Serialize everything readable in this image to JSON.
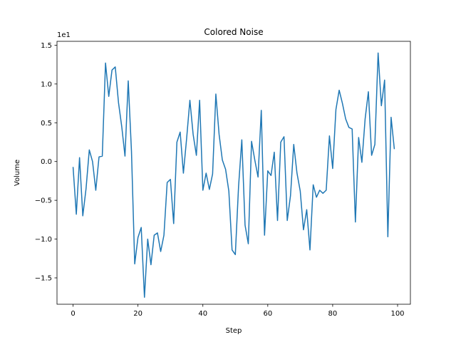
{
  "chart_data": {
    "type": "line",
    "title": "Colored Noise",
    "xlabel": "Step",
    "ylabel": "Volume",
    "y_offset_label": "1e1",
    "xlim": [
      -4.95,
      103.95
    ],
    "ylim": [
      -1.84,
      1.55
    ],
    "x_ticks": [
      0,
      20,
      40,
      60,
      80,
      100
    ],
    "x_tick_labels": [
      "0",
      "20",
      "40",
      "60",
      "80",
      "100"
    ],
    "y_ticks": [
      -1.5,
      -1.0,
      -0.5,
      0.0,
      0.5,
      1.0,
      1.5
    ],
    "y_tick_labels": [
      "−1.5",
      "−1.0",
      "−0.5",
      "0.0",
      "0.5",
      "1.0",
      "1.5"
    ],
    "grid": false,
    "series": [
      {
        "color": "#1f77b4",
        "x": [
          0,
          1,
          2,
          3,
          4,
          5,
          6,
          7,
          8,
          9,
          10,
          11,
          12,
          13,
          14,
          15,
          16,
          17,
          18,
          19,
          20,
          21,
          22,
          23,
          24,
          25,
          26,
          27,
          28,
          29,
          30,
          31,
          32,
          33,
          34,
          35,
          36,
          37,
          38,
          39,
          40,
          41,
          42,
          43,
          44,
          45,
          46,
          47,
          48,
          49,
          50,
          51,
          52,
          53,
          54,
          55,
          56,
          57,
          58,
          59,
          60,
          61,
          62,
          63,
          64,
          65,
          66,
          67,
          68,
          69,
          70,
          71,
          72,
          73,
          74,
          75,
          76,
          77,
          78,
          79,
          80,
          81,
          82,
          83,
          84,
          85,
          86,
          87,
          88,
          89,
          90,
          91,
          92,
          93,
          94,
          95,
          96,
          97,
          98,
          99
        ],
        "y": [
          -0.07,
          -0.68,
          0.05,
          -0.7,
          -0.35,
          0.15,
          0.0,
          -0.37,
          0.06,
          0.07,
          1.27,
          0.84,
          1.18,
          1.22,
          0.76,
          0.45,
          0.07,
          1.04,
          0.13,
          -1.32,
          -0.98,
          -0.85,
          -1.75,
          -1.0,
          -1.33,
          -0.95,
          -0.92,
          -1.16,
          -0.95,
          -0.27,
          -0.23,
          -0.8,
          0.25,
          0.38,
          -0.15,
          0.3,
          0.79,
          0.35,
          0.08,
          0.79,
          -0.37,
          -0.15,
          -0.36,
          -0.16,
          0.87,
          0.35,
          0.02,
          -0.1,
          -0.38,
          -1.14,
          -1.2,
          -0.32,
          0.28,
          -0.82,
          -1.06,
          0.26,
          0.02,
          -0.2,
          0.66,
          -0.95,
          -0.12,
          -0.18,
          0.12,
          -0.76,
          0.25,
          0.32,
          -0.76,
          -0.44,
          0.22,
          -0.15,
          -0.38,
          -0.88,
          -0.62,
          -1.14,
          -0.3,
          -0.46,
          -0.37,
          -0.41,
          -0.37,
          0.33,
          -0.09,
          0.67,
          0.92,
          0.75,
          0.55,
          0.44,
          0.42,
          -0.78,
          0.31,
          -0.01,
          0.55,
          0.9,
          0.08,
          0.22,
          1.4,
          0.72,
          1.05,
          -0.97,
          0.57,
          0.16
        ]
      }
    ]
  }
}
